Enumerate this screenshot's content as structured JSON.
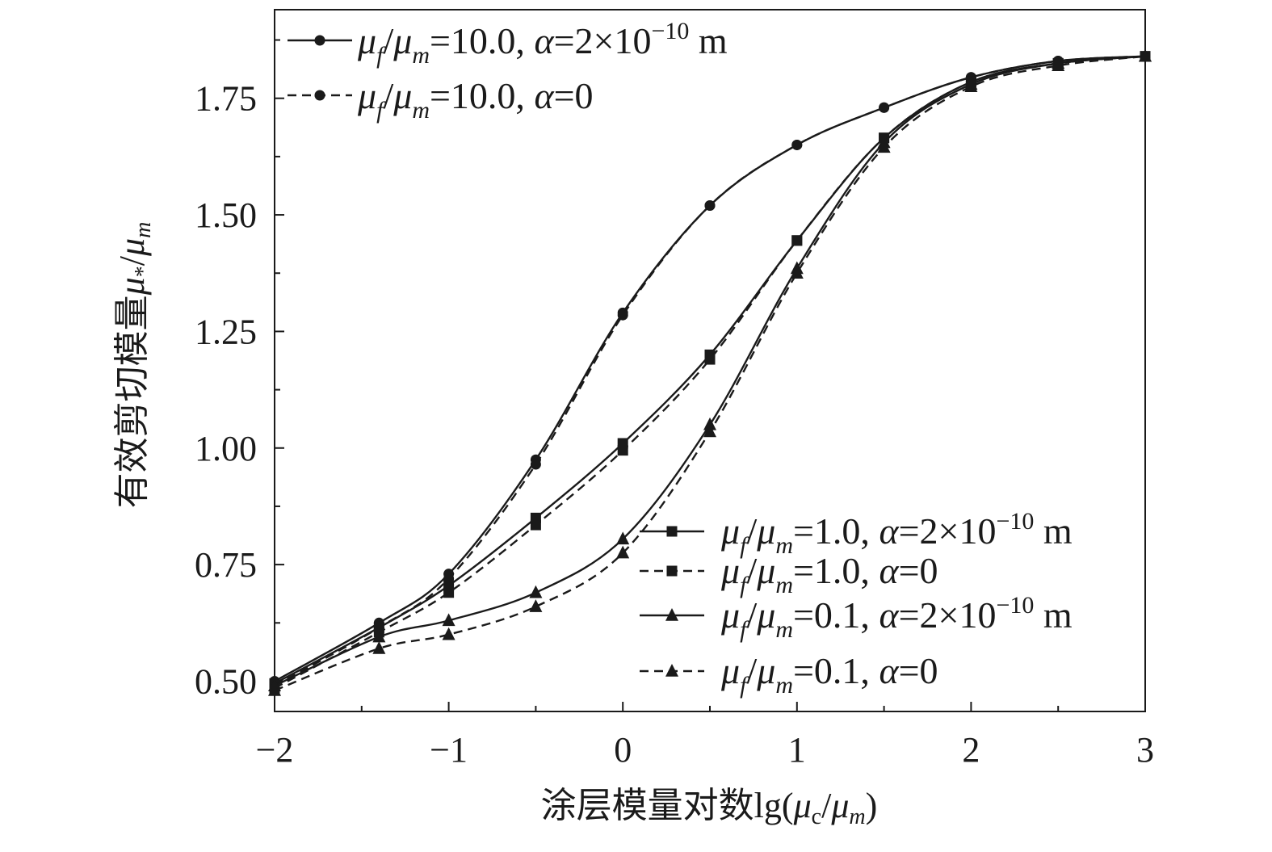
{
  "chart_data": {
    "type": "line",
    "xlabel_prefix": "涂层模量对数lg(",
    "xlabel_mu": "μ",
    "xlabel_c": "c",
    "xlabel_slash": "/",
    "xlabel_m": "m",
    "xlabel_suffix": ")",
    "ylabel_prefix": "有效剪切模量",
    "ylabel_mu": "μ",
    "ylabel_star": "*",
    "ylabel_slash": "/",
    "ylabel_m": "m",
    "xlim": [
      -2,
      3
    ],
    "ylim": [
      0.435,
      1.94
    ],
    "xticks": [
      -2,
      -1,
      0,
      1,
      2,
      3
    ],
    "xtick_labels": [
      "−2",
      "−1",
      "0",
      "1",
      "2",
      "3"
    ],
    "yticks": [
      0.5,
      0.75,
      1.0,
      1.25,
      1.5,
      1.75
    ],
    "ytick_labels": [
      "0.50",
      "0.75",
      "1.00",
      "1.25",
      "1.50",
      "1.75"
    ],
    "grid": false,
    "legend_placement": [
      "top-left",
      "bottom-right"
    ],
    "series": [
      {
        "id": "s1",
        "legend": {
          "ratio": "10.0",
          "alpha": "2×10",
          "exp": "−10",
          "unit": " m"
        },
        "marker": "circle",
        "dash": "solid",
        "color": "#1a1a1a",
        "x": [
          -2,
          -1.4,
          -1,
          -0.5,
          0,
          0.5,
          1,
          1.5,
          2,
          2.5,
          3
        ],
        "y": [
          0.5,
          0.625,
          0.73,
          0.975,
          1.29,
          1.52,
          1.65,
          1.73,
          1.795,
          1.83,
          1.84
        ]
      },
      {
        "id": "s2",
        "legend": {
          "ratio": "10.0",
          "alpha": "0"
        },
        "marker": "circle",
        "dash": "dashed",
        "color": "#1a1a1a",
        "x": [
          -2,
          -1.4,
          -1,
          -0.5,
          0,
          0.5,
          1,
          1.5,
          2,
          2.5,
          3
        ],
        "y": [
          0.49,
          0.615,
          0.72,
          0.965,
          1.285,
          1.52,
          1.65,
          1.73,
          1.795,
          1.83,
          1.84
        ]
      },
      {
        "id": "s3",
        "legend": {
          "ratio": "1.0",
          "alpha": "2×10",
          "exp": "−10",
          "unit": " m"
        },
        "marker": "square",
        "dash": "solid",
        "color": "#1a1a1a",
        "x": [
          -2,
          -1.4,
          -1,
          -0.5,
          0,
          0.5,
          1,
          1.5,
          2,
          2.5,
          3
        ],
        "y": [
          0.495,
          0.615,
          0.705,
          0.85,
          1.01,
          1.2,
          1.445,
          1.665,
          1.785,
          1.825,
          1.84
        ]
      },
      {
        "id": "s4",
        "legend": {
          "ratio": "1.0",
          "alpha": "0"
        },
        "marker": "square",
        "dash": "dashed",
        "color": "#1a1a1a",
        "x": [
          -2,
          -1.4,
          -1,
          -0.5,
          0,
          0.5,
          1,
          1.5,
          2,
          2.5,
          3
        ],
        "y": [
          0.485,
          0.605,
          0.69,
          0.835,
          0.995,
          1.19,
          1.445,
          1.665,
          1.785,
          1.825,
          1.84
        ]
      },
      {
        "id": "s5",
        "legend": {
          "ratio": "0.1",
          "alpha": "2×10",
          "exp": "−10",
          "unit": " m"
        },
        "marker": "triangle",
        "dash": "solid",
        "color": "#1a1a1a",
        "x": [
          -2,
          -1.4,
          -1,
          -0.5,
          0,
          0.5,
          1,
          1.5,
          2,
          2.5,
          3
        ],
        "y": [
          0.49,
          0.595,
          0.63,
          0.69,
          0.805,
          1.05,
          1.385,
          1.655,
          1.78,
          1.825,
          1.84
        ]
      },
      {
        "id": "s6",
        "legend": {
          "ratio": "0.1",
          "alpha": "0"
        },
        "marker": "triangle",
        "dash": "dashed",
        "color": "#1a1a1a",
        "x": [
          -2,
          -1.4,
          -1,
          -0.5,
          0,
          0.5,
          1,
          1.5,
          2,
          2.5,
          3
        ],
        "y": [
          0.48,
          0.57,
          0.6,
          0.66,
          0.775,
          1.035,
          1.375,
          1.645,
          1.775,
          1.82,
          1.84
        ]
      }
    ]
  }
}
